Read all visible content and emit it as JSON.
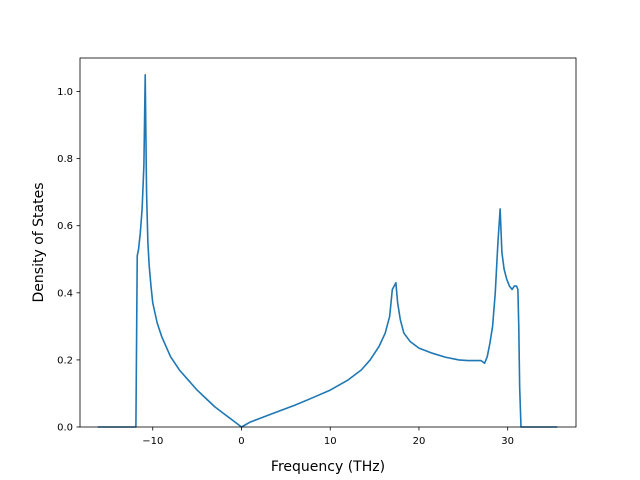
{
  "chart_data": {
    "type": "line",
    "title": "",
    "xlabel": "Frequency (THz)",
    "ylabel": "Density of States",
    "xlim": [
      -18.2,
      37.7
    ],
    "ylim": [
      0.0,
      1.1
    ],
    "grid": false,
    "legend": "none",
    "x_ticks": [
      -10,
      0,
      10,
      20,
      30
    ],
    "y_ticks": [
      0.0,
      0.2,
      0.4,
      0.6,
      0.8,
      1.0
    ],
    "x_tick_labels": [
      "−10",
      "0",
      "10",
      "20",
      "30"
    ],
    "y_tick_labels": [
      "0.0",
      "0.2",
      "0.4",
      "0.6",
      "0.8",
      "1.0"
    ],
    "series": [
      {
        "color": "#1f77b4",
        "x": [
          -16.2,
          -11.9,
          -11.75,
          -11.6,
          -11.4,
          -11.2,
          -11.0,
          -10.85,
          -10.7,
          -10.55,
          -10.4,
          -10.2,
          -10.0,
          -9.5,
          -9.0,
          -8.0,
          -7.0,
          -6.0,
          -5.0,
          -4.0,
          -3.0,
          -2.0,
          -1.0,
          0.0,
          1.0,
          2.0,
          4.0,
          6.0,
          8.0,
          10.0,
          12.0,
          13.5,
          14.5,
          15.5,
          16.2,
          16.7,
          17.0,
          17.2,
          17.4,
          17.6,
          17.9,
          18.3,
          19.0,
          20.0,
          21.5,
          23.0,
          24.5,
          25.5,
          26.5,
          27.0,
          27.4,
          27.7,
          28.0,
          28.3,
          28.6,
          28.9,
          29.15,
          29.35,
          29.6,
          29.9,
          30.2,
          30.5,
          30.75,
          31.0,
          31.15,
          31.25,
          31.35,
          31.5,
          35.6
        ],
        "y": [
          0.0,
          0.0,
          0.51,
          0.53,
          0.58,
          0.65,
          0.78,
          1.05,
          0.7,
          0.55,
          0.48,
          0.42,
          0.37,
          0.31,
          0.27,
          0.21,
          0.17,
          0.14,
          0.11,
          0.085,
          0.06,
          0.04,
          0.02,
          0.0,
          0.015,
          0.025,
          0.045,
          0.065,
          0.087,
          0.11,
          0.14,
          0.17,
          0.2,
          0.24,
          0.28,
          0.33,
          0.41,
          0.42,
          0.43,
          0.37,
          0.32,
          0.28,
          0.255,
          0.235,
          0.22,
          0.208,
          0.2,
          0.198,
          0.198,
          0.198,
          0.19,
          0.21,
          0.25,
          0.3,
          0.4,
          0.55,
          0.65,
          0.52,
          0.47,
          0.44,
          0.42,
          0.41,
          0.42,
          0.42,
          0.41,
          0.3,
          0.12,
          0.0,
          0.0
        ]
      }
    ]
  }
}
